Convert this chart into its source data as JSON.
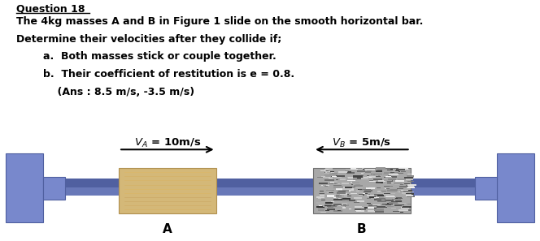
{
  "title": "Question 18",
  "line1": "The 4kg masses A and B in Figure 1 slide on the smooth horizontal bar.",
  "line2": "Determine their velocities after they collide if;",
  "item_a": "a.  Both masses stick or couple together.",
  "item_b": "b.  Their coefficient of restitution is e = 0.8.",
  "item_ans": "    (Ans : 8.5 m/s, -3.5 m/s)",
  "VA_label": "$V_A$ = 10m/s",
  "VB_label": "$V_B$ = 5m/s",
  "label_A": "A",
  "label_B": "B",
  "bg_color": "#ffffff",
  "text_color": "#000000",
  "bar_color_top": "#5060a0",
  "bar_color_bot": "#6878b8",
  "wall_color": "#7888cc",
  "wall_edge": "#5060a0",
  "mass_A_color": "#d4b878",
  "mass_A_edge": "#b09050",
  "mass_B_color": "#a8a8a8",
  "mass_B_edge": "#707070",
  "arrow_color": "#000000",
  "fig_width": 6.64,
  "fig_height": 2.97,
  "dpi": 100
}
